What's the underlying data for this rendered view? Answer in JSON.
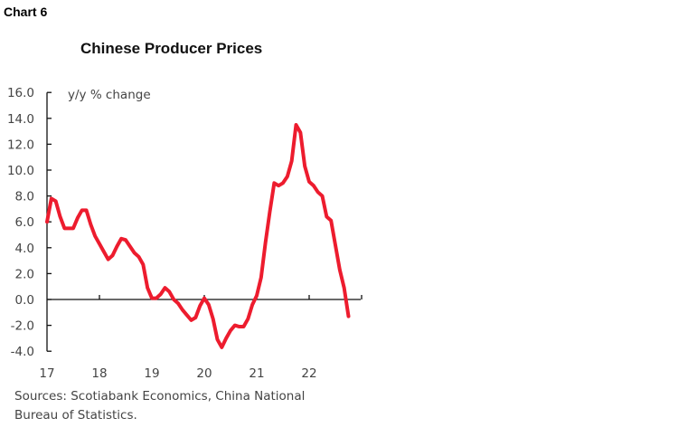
{
  "chart_label": "Chart 6",
  "chart_data": {
    "type": "line",
    "title": "Chinese Producer Prices",
    "ylabel": "y/y % change",
    "xlabel": "",
    "ylim": [
      -4,
      16
    ],
    "yticks": [
      "16.0",
      "14.0",
      "12.0",
      "10.0",
      "8.0",
      "6.0",
      "4.0",
      "2.0",
      "0.0",
      "-2.0",
      "-4.0"
    ],
    "ytick_values": [
      16,
      14,
      12,
      10,
      8,
      6,
      4,
      2,
      0,
      -2,
      -4
    ],
    "xticks": [
      "17",
      "18",
      "19",
      "20",
      "21",
      "22"
    ],
    "x_start": "2017-01",
    "x_end": "2022-10",
    "grid": false,
    "color": "#ED1C2E",
    "series": [
      {
        "values": [
          6.0,
          7.8,
          7.6,
          6.4,
          5.5,
          5.5,
          5.5,
          6.3,
          6.9,
          6.9,
          5.8,
          4.9,
          4.3,
          3.7,
          3.1,
          3.4,
          4.1,
          4.7,
          4.6,
          4.1,
          3.6,
          3.3,
          2.7,
          0.9,
          0.1,
          0.1,
          0.4,
          0.9,
          0.6,
          0.0,
          -0.3,
          -0.8,
          -1.2,
          -1.6,
          -1.4,
          -0.5,
          0.1,
          -0.4,
          -1.5,
          -3.1,
          -3.7,
          -3.0,
          -2.4,
          -2.0,
          -2.1,
          -2.1,
          -1.5,
          -0.4,
          0.3,
          1.7,
          4.4,
          6.8,
          9.0,
          8.8,
          9.0,
          9.5,
          10.7,
          13.5,
          12.9,
          10.3,
          9.1,
          8.8,
          8.3,
          8.0,
          6.4,
          6.1,
          4.2,
          2.3,
          0.9,
          -1.3
        ]
      }
    ]
  },
  "source": "Sources: Scotiabank Economics, China National Bureau of Statistics."
}
